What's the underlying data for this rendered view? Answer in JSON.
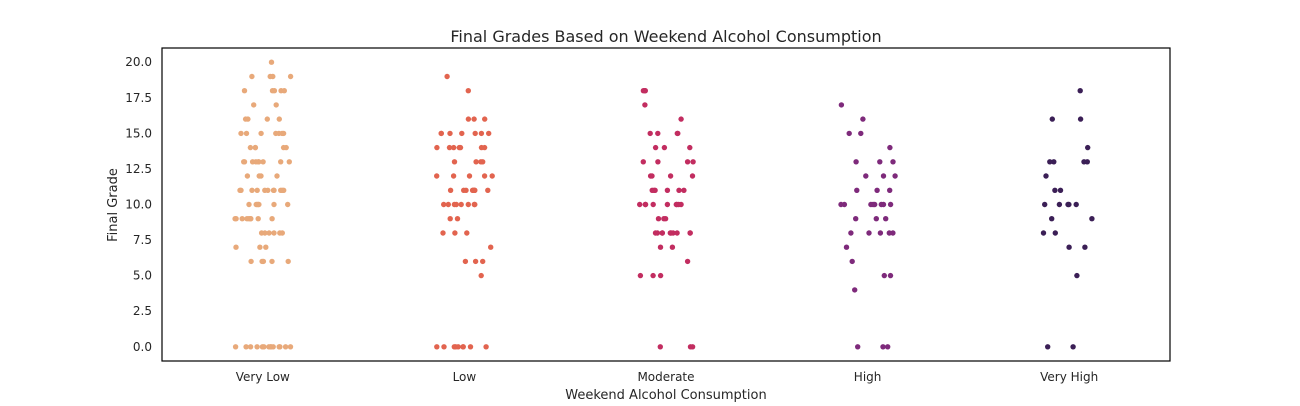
{
  "chart_data": {
    "type": "scatter",
    "style": "strip-plot",
    "title": "Final Grades Based on Weekend Alcohol Consumption",
    "xlabel": "Weekend Alcohol Consumption",
    "ylabel": "Final Grade",
    "categories": [
      "Very Low",
      "Low",
      "Moderate",
      "High",
      "Very High"
    ],
    "ylim": [
      -1,
      21
    ],
    "yticks": [
      "0.0",
      "2.5",
      "5.0",
      "7.5",
      "10.0",
      "12.5",
      "15.0",
      "17.5",
      "20.0"
    ],
    "grid": false,
    "legend": "none",
    "colors": [
      "#E8A97A",
      "#E2644F",
      "#C22D60",
      "#7E2A7B",
      "#3B1F56"
    ],
    "series": [
      {
        "values": [
          20,
          19,
          19,
          19,
          19,
          18,
          18,
          18,
          18,
          18,
          17,
          17,
          16,
          16,
          16,
          16,
          15,
          15,
          15,
          15,
          15,
          15,
          15,
          14,
          14,
          14,
          14,
          14,
          13,
          13,
          13,
          13,
          13,
          13,
          13,
          13,
          13,
          12,
          12,
          12,
          12,
          11,
          11,
          11,
          11,
          11,
          11,
          11,
          11,
          11,
          11,
          11,
          10,
          10,
          10,
          10,
          10,
          10,
          10,
          9,
          9,
          9,
          9,
          9,
          9,
          9,
          9,
          9,
          8,
          8,
          8,
          8,
          8,
          8,
          7,
          7,
          7,
          6,
          6,
          6,
          6,
          6,
          0,
          0,
          0,
          0,
          0,
          0,
          0,
          0,
          0,
          0,
          0,
          0,
          0,
          0
        ]
      },
      {
        "values": [
          19,
          18,
          16,
          16,
          16,
          15,
          15,
          15,
          15,
          15,
          15,
          15,
          14,
          14,
          14,
          14,
          14,
          14,
          14,
          13,
          13,
          13,
          13,
          12,
          12,
          12,
          12,
          12,
          11,
          11,
          11,
          11,
          11,
          11,
          11,
          11,
          11,
          10,
          10,
          10,
          10,
          10,
          10,
          10,
          10,
          9,
          9,
          8,
          8,
          8,
          7,
          6,
          6,
          6,
          5,
          0,
          0,
          0,
          0,
          0,
          0,
          0,
          0,
          0
        ]
      },
      {
        "values": [
          18,
          18,
          18,
          17,
          16,
          15,
          15,
          15,
          15,
          14,
          14,
          14,
          13,
          13,
          13,
          13,
          12,
          12,
          12,
          12,
          11,
          11,
          11,
          11,
          11,
          11,
          10,
          10,
          10,
          10,
          10,
          10,
          10,
          10,
          10,
          9,
          9,
          9,
          8,
          8,
          8,
          8,
          8,
          8,
          8,
          8,
          8,
          8,
          7,
          7,
          6,
          5,
          5,
          5,
          0,
          0,
          0
        ]
      },
      {
        "values": [
          17,
          16,
          15,
          15,
          14,
          13,
          13,
          13,
          12,
          12,
          12,
          11,
          11,
          11,
          10,
          10,
          10,
          10,
          10,
          10,
          10,
          10,
          9,
          9,
          9,
          8,
          8,
          8,
          8,
          8,
          7,
          6,
          5,
          5,
          4,
          0,
          0,
          0
        ]
      },
      {
        "values": [
          18,
          16,
          16,
          14,
          13,
          13,
          13,
          13,
          12,
          11,
          11,
          10,
          10,
          10,
          10,
          10,
          9,
          9,
          8,
          8,
          7,
          7,
          5,
          0,
          0
        ]
      }
    ]
  }
}
